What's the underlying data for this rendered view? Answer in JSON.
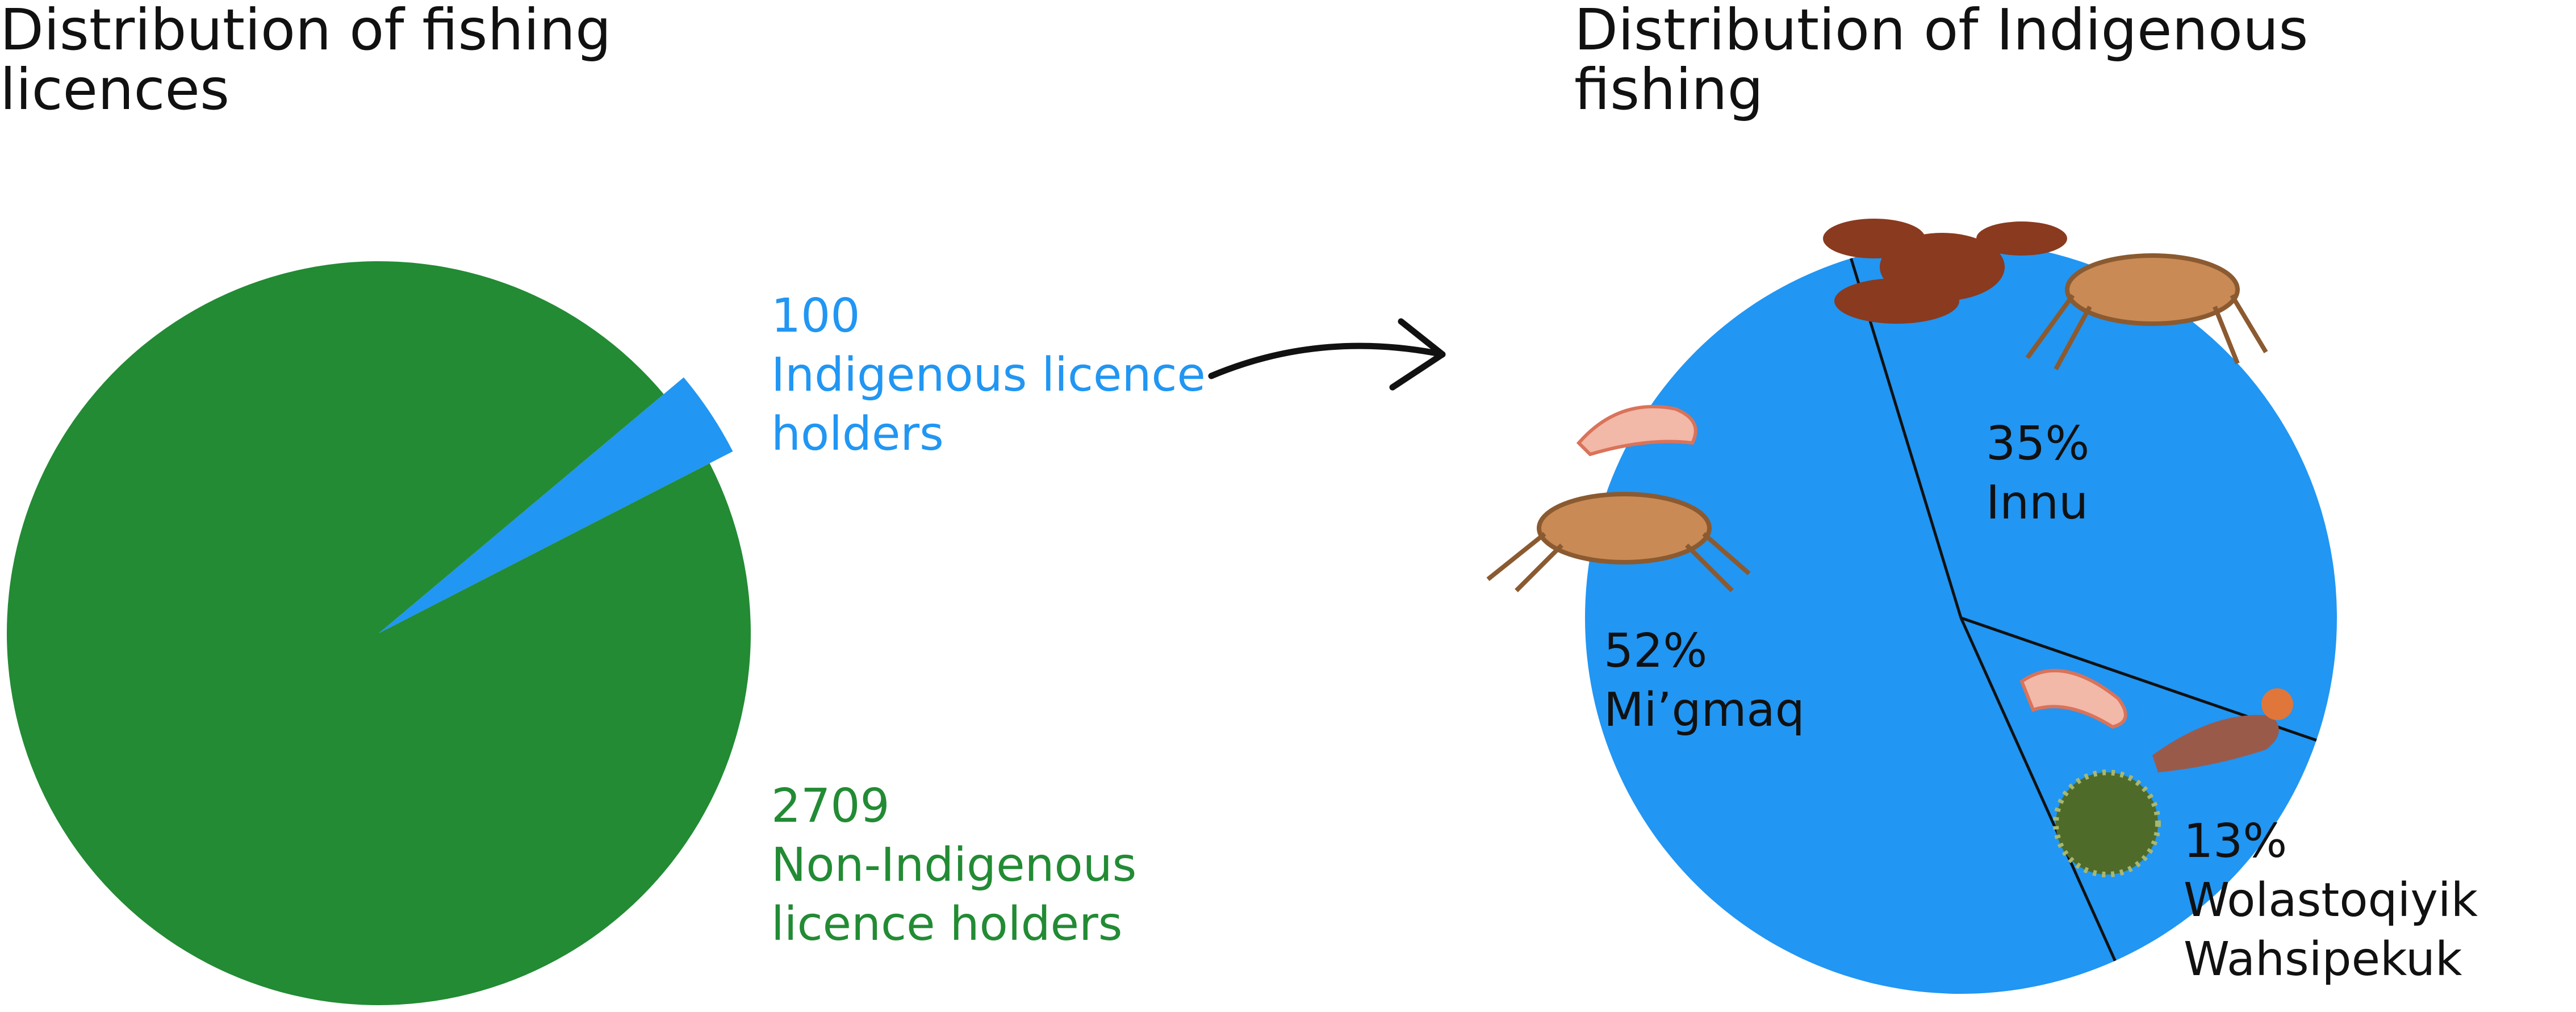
{
  "chart_data": [
    {
      "type": "pie",
      "title": "Distribution of fishing licences",
      "categories": [
        "Indigenous licence holders",
        "Non-Indigenous licence holders"
      ],
      "values": [
        100,
        2709
      ],
      "colors": [
        "#2196f3",
        "#228b34"
      ]
    },
    {
      "type": "pie",
      "title": "Distribution of Indigenous fishing",
      "categories": [
        "Innu",
        "Wolastoqiyik Wahsipekuk",
        "Mi’gmaq"
      ],
      "values": [
        35,
        13,
        52
      ],
      "value_labels": [
        "35%",
        "13%",
        "52%"
      ],
      "colors": [
        "#2196f3",
        "#2196f3",
        "#2196f3"
      ]
    }
  ]
}
